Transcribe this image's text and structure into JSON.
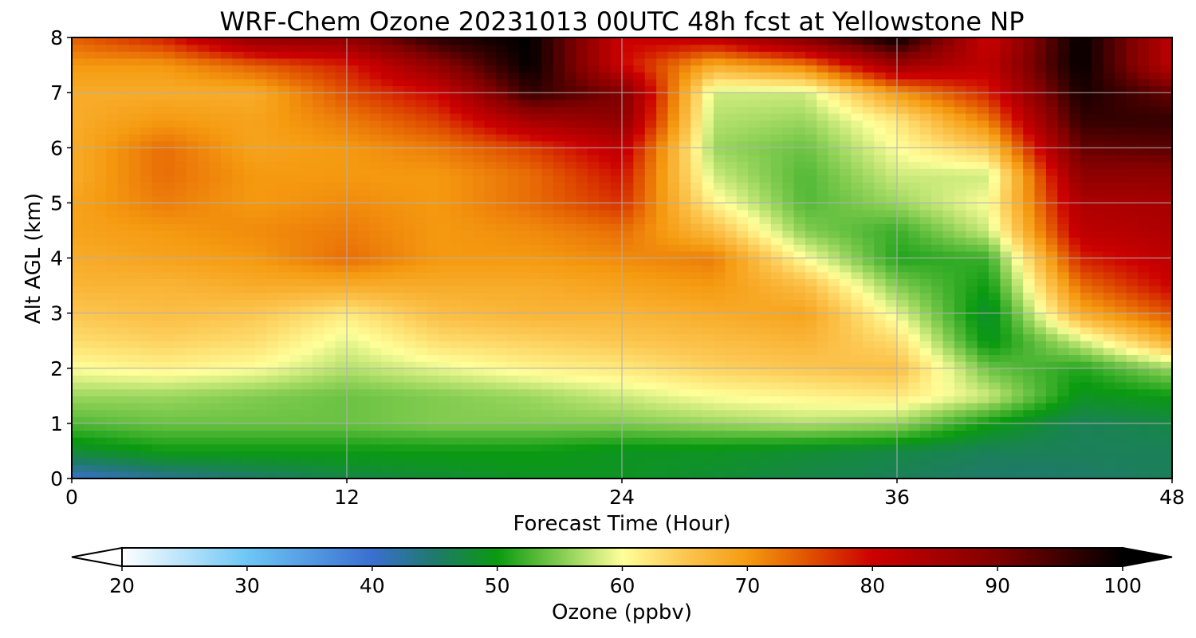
{
  "chart_data": {
    "type": "heatmap",
    "title": "WRF-Chem Ozone  20231013 00UTC 48h fcst at Yellowstone NP",
    "xlabel": "Forecast Time (Hour)",
    "ylabel": "Alt AGL (km)",
    "xlim": [
      0,
      48
    ],
    "ylim": [
      0,
      8
    ],
    "x_ticks": [
      "0",
      "12",
      "24",
      "36",
      "48"
    ],
    "y_ticks": [
      "0",
      "1",
      "2",
      "3",
      "4",
      "5",
      "6",
      "7",
      "8"
    ],
    "grid": true,
    "colorbar": {
      "label": "Ozone  (ppbv)",
      "range": [
        20,
        100
      ],
      "ticks": [
        "20",
        "30",
        "40",
        "50",
        "60",
        "70",
        "80",
        "90",
        "100"
      ],
      "extend": "both",
      "stops": [
        {
          "v": 20,
          "color": "#ffffff"
        },
        {
          "v": 30,
          "color": "#6ec6f5"
        },
        {
          "v": 40,
          "color": "#3a6fd0"
        },
        {
          "v": 45,
          "color": "#1f7a6a"
        },
        {
          "v": 50,
          "color": "#0a9a10"
        },
        {
          "v": 55,
          "color": "#82cc50"
        },
        {
          "v": 60,
          "color": "#ffff9a"
        },
        {
          "v": 65,
          "color": "#fcc650"
        },
        {
          "v": 70,
          "color": "#f59a10"
        },
        {
          "v": 75,
          "color": "#e05000"
        },
        {
          "v": 80,
          "color": "#cc0000"
        },
        {
          "v": 90,
          "color": "#800000"
        },
        {
          "v": 100,
          "color": "#000000"
        }
      ]
    },
    "time_hours": [
      0,
      4,
      8,
      12,
      16,
      20,
      24,
      28,
      32,
      36,
      40,
      44,
      48
    ],
    "altitudes_km": [
      0,
      0.5,
      1,
      1.5,
      2,
      2.5,
      3,
      3.5,
      4,
      4.5,
      5,
      5.5,
      6,
      6.5,
      7,
      7.5,
      8
    ],
    "ozone_ppbv": [
      [
        40,
        43,
        45,
        47,
        48,
        49,
        49,
        48,
        47,
        46,
        45,
        45,
        46
      ],
      [
        48,
        50,
        50,
        50,
        50,
        50,
        49,
        49,
        48,
        47,
        46,
        46,
        46
      ],
      [
        53,
        54,
        54,
        54,
        55,
        55,
        55,
        56,
        57,
        56,
        50,
        46,
        47
      ],
      [
        56,
        56,
        55,
        54,
        55,
        56,
        58,
        60,
        61,
        62,
        58,
        49,
        50
      ],
      [
        60,
        61,
        60,
        57,
        59,
        61,
        62,
        64,
        65,
        66,
        54,
        51,
        56
      ],
      [
        63,
        64,
        63,
        59,
        63,
        64,
        65,
        66,
        67,
        63,
        49,
        58,
        68
      ],
      [
        65,
        66,
        65,
        62,
        66,
        67,
        67,
        68,
        69,
        59,
        48,
        68,
        75
      ],
      [
        67,
        67,
        68,
        68,
        68,
        68,
        69,
        70,
        66,
        55,
        50,
        73,
        80
      ],
      [
        68,
        69,
        70,
        73,
        70,
        70,
        71,
        72,
        60,
        51,
        52,
        78,
        82
      ],
      [
        69,
        70,
        71,
        72,
        70,
        71,
        73,
        66,
        55,
        52,
        58,
        82,
        84
      ],
      [
        69,
        72,
        70,
        71,
        70,
        73,
        77,
        61,
        53,
        56,
        60,
        84,
        85
      ],
      [
        68,
        73,
        70,
        70,
        70,
        73,
        79,
        58,
        53,
        58,
        58,
        88,
        88
      ],
      [
        68,
        73,
        69,
        70,
        72,
        76,
        82,
        56,
        54,
        60,
        65,
        92,
        93
      ],
      [
        68,
        70,
        69,
        72,
        76,
        85,
        88,
        57,
        56,
        62,
        72,
        96,
        96
      ],
      [
        68,
        68,
        68,
        75,
        80,
        96,
        90,
        58,
        58,
        70,
        78,
        98,
        92
      ],
      [
        70,
        70,
        74,
        78,
        88,
        100,
        80,
        68,
        72,
        86,
        82,
        100,
        82
      ],
      [
        74,
        78,
        88,
        88,
        97,
        100,
        80,
        82,
        90,
        100,
        80,
        100,
        82
      ]
    ]
  }
}
